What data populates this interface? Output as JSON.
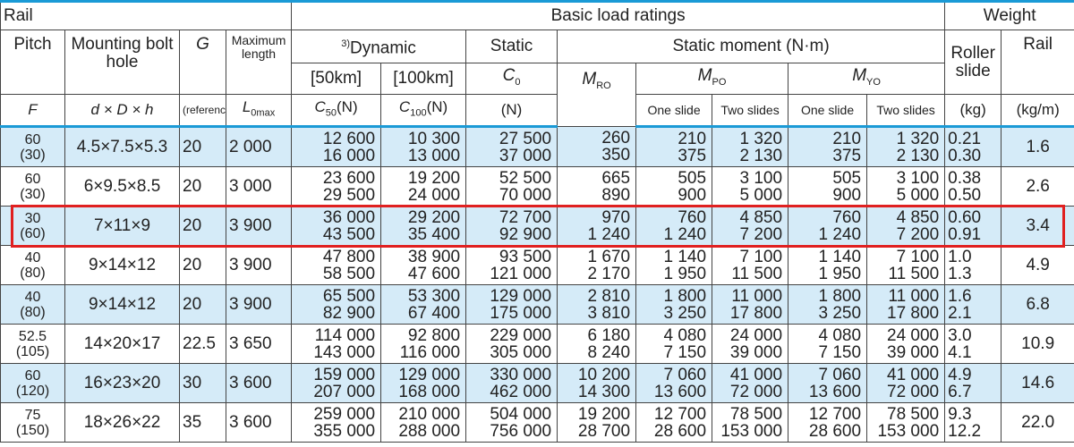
{
  "header": {
    "rail": "Rail",
    "basic": "Basic load ratings",
    "weight": "Weight",
    "pitch": "Pitch",
    "bolt": "Mounting bolt hole",
    "g": "G",
    "maxlen": "Maximum length",
    "dynamic_note": "3)",
    "dynamic": "Dynamic",
    "static": "Static",
    "moment": "Static moment (N·m)",
    "roller": "Roller slide",
    "rail_w": "Rail",
    "km50": "[50km]",
    "km100": "[100km]",
    "c0": {
      "main": "C",
      "sub": "0"
    },
    "mro": {
      "main": "M",
      "sub": "RO"
    },
    "mpo": {
      "main": "M",
      "sub": "PO"
    },
    "myo": {
      "main": "M",
      "sub": "YO"
    },
    "f": "F",
    "ddh": "d × D × h",
    "ref": "(reference)",
    "l0": {
      "main": "L",
      "sub": "0max"
    },
    "c50": {
      "main": "C",
      "sub": "50",
      "unit": "(N)"
    },
    "c100": {
      "main": "C",
      "sub": "100",
      "unit": "(N)"
    },
    "n": "(N)",
    "one1": "One slide",
    "two1": "Two slides",
    "one2": "One slide",
    "two2": "Two slides",
    "kg": "(kg)",
    "kgm": "(kg/m)"
  },
  "rows": [
    {
      "pitch": "60",
      "pitch_alt": "(30)",
      "bolt": "4.5×7.5×5.3",
      "g": "20",
      "lmax": "2 000",
      "cells": [
        [
          "12 600",
          "16 000"
        ],
        [
          "10 300",
          "13 000"
        ],
        [
          "27 500",
          "37 000"
        ],
        [
          "260",
          "350"
        ],
        [
          "210",
          "375"
        ],
        [
          "1 320",
          "2 130"
        ],
        [
          "210",
          "375"
        ],
        [
          "1 320",
          "2 130"
        ],
        [
          "0.21",
          "0.30"
        ]
      ],
      "rail": "1.6"
    },
    {
      "pitch": "60",
      "pitch_alt": "(30)",
      "bolt": "6×9.5×8.5",
      "g": "20",
      "lmax": "3 000",
      "cells": [
        [
          "23 600",
          "29 500"
        ],
        [
          "19 200",
          "24 000"
        ],
        [
          "52 500",
          "70 000"
        ],
        [
          "665",
          "890"
        ],
        [
          "505",
          "900"
        ],
        [
          "3 100",
          "5 000"
        ],
        [
          "505",
          "900"
        ],
        [
          "3 100",
          "5 000"
        ],
        [
          "0.38",
          "0.50"
        ]
      ],
      "rail": "2.6"
    },
    {
      "pitch": "30",
      "pitch_alt": "(60)",
      "bolt": "7×11×9",
      "g": "20",
      "lmax": "3 900",
      "cells": [
        [
          "36 000",
          "43 500"
        ],
        [
          "29 200",
          "35 400"
        ],
        [
          "72 700",
          "92 900"
        ],
        [
          "970",
          "1 240"
        ],
        [
          "760",
          "1 240"
        ],
        [
          "4 850",
          "7 200"
        ],
        [
          "760",
          "1 240"
        ],
        [
          "4 850",
          "7 200"
        ],
        [
          "0.60",
          "0.91"
        ]
      ],
      "rail": "3.4"
    },
    {
      "pitch": "40",
      "pitch_alt": "(80)",
      "bolt": "9×14×12",
      "g": "20",
      "lmax": "3 900",
      "cells": [
        [
          "47 800",
          "58 500"
        ],
        [
          "38 900",
          "47 600"
        ],
        [
          "93 500",
          "121 000"
        ],
        [
          "1 670",
          "2 170"
        ],
        [
          "1 140",
          "1 950"
        ],
        [
          "7 100",
          "11 500"
        ],
        [
          "1 140",
          "1 950"
        ],
        [
          "7 100",
          "11 500"
        ],
        [
          "1.0",
          "1.3"
        ]
      ],
      "rail": "4.9"
    },
    {
      "pitch": "40",
      "pitch_alt": "(80)",
      "bolt": "9×14×12",
      "g": "20",
      "lmax": "3 900",
      "cells": [
        [
          "65 500",
          "82 900"
        ],
        [
          "53 300",
          "67 400"
        ],
        [
          "129 000",
          "175 000"
        ],
        [
          "2 810",
          "3 810"
        ],
        [
          "1 800",
          "3 250"
        ],
        [
          "11 000",
          "17 800"
        ],
        [
          "1 800",
          "3 250"
        ],
        [
          "11 000",
          "17 800"
        ],
        [
          "1.6",
          "2.1"
        ]
      ],
      "rail": "6.8"
    },
    {
      "pitch": "52.5",
      "pitch_alt": "(105)",
      "bolt": "14×20×17",
      "g": "22.5",
      "lmax": "3 650",
      "cells": [
        [
          "114 000",
          "143 000"
        ],
        [
          "92 800",
          "116 000"
        ],
        [
          "229 000",
          "305 000"
        ],
        [
          "6 180",
          "8 240"
        ],
        [
          "4 080",
          "7 150"
        ],
        [
          "24 000",
          "39 000"
        ],
        [
          "4 080",
          "7 150"
        ],
        [
          "24 000",
          "39 000"
        ],
        [
          "3.0",
          "4.1"
        ]
      ],
      "rail": "10.9"
    },
    {
      "pitch": "60",
      "pitch_alt": "(120)",
      "bolt": "16×23×20",
      "g": "30",
      "lmax": "3 600",
      "cells": [
        [
          "159 000",
          "207 000"
        ],
        [
          "129 000",
          "168 000"
        ],
        [
          "330 000",
          "462 000"
        ],
        [
          "10 200",
          "14 300"
        ],
        [
          "7 060",
          "13 600"
        ],
        [
          "41 000",
          "72 000"
        ],
        [
          "7 060",
          "13 600"
        ],
        [
          "41 000",
          "72 000"
        ],
        [
          "4.9",
          "6.7"
        ]
      ],
      "rail": "14.6"
    },
    {
      "pitch": "75",
      "pitch_alt": "(150)",
      "bolt": "18×26×22",
      "g": "35",
      "lmax": "3 600",
      "cells": [
        [
          "259 000",
          "355 000"
        ],
        [
          "210 000",
          "288 000"
        ],
        [
          "504 000",
          "756 000"
        ],
        [
          "19 200",
          "28 700"
        ],
        [
          "12 700",
          "28 600"
        ],
        [
          "78 500",
          "153 000"
        ],
        [
          "12 700",
          "28 600"
        ],
        [
          "78 500",
          "153 000"
        ],
        [
          "9.3",
          "12.2"
        ]
      ],
      "rail": "22.0"
    }
  ]
}
